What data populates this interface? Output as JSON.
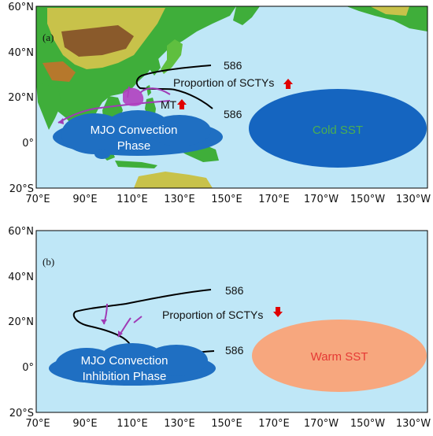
{
  "panels": [
    {
      "label": "(a)",
      "contour_label_top": "586",
      "contour_label_bottom": "586",
      "sctys_text": "Proportion of SCTYs",
      "sctys_arrow": "up",
      "mt_text": "MT",
      "mt_arrow": "up",
      "mjo_text_line1": "MJO Convection",
      "mjo_text_line2": "Phase",
      "sst_text": "Cold SST",
      "sst_color": "#1565c0",
      "sst_text_color": "#4caf50"
    },
    {
      "label": "(b)",
      "contour_label_top": "586",
      "contour_label_bottom": "586",
      "sctys_text": "Proportion of SCTYs",
      "sctys_arrow": "down",
      "mjo_text_line1": "MJO Convection",
      "mjo_text_line2": "Inhibition Phase",
      "sst_text": "Warm SST",
      "sst_color": "#f7a77e",
      "sst_text_color": "#e53935"
    }
  ],
  "lat_labels": [
    "60°N",
    "40°N",
    "20°N",
    "0°",
    "20°S"
  ],
  "lon_labels": [
    "70°E",
    "90°E",
    "110°E",
    "130°E",
    "150°E",
    "170°E",
    "170°W",
    "150°W",
    "130°W"
  ],
  "colors": {
    "ocean": "#bfe7f7",
    "land_low": "#3fae3a",
    "land_mid": "#c8c24a",
    "land_high": "#8a5a2b",
    "mjo_cloud": "#1f6fc2",
    "track_purple": "#a03bb5",
    "arrow_red": "#e00000"
  }
}
